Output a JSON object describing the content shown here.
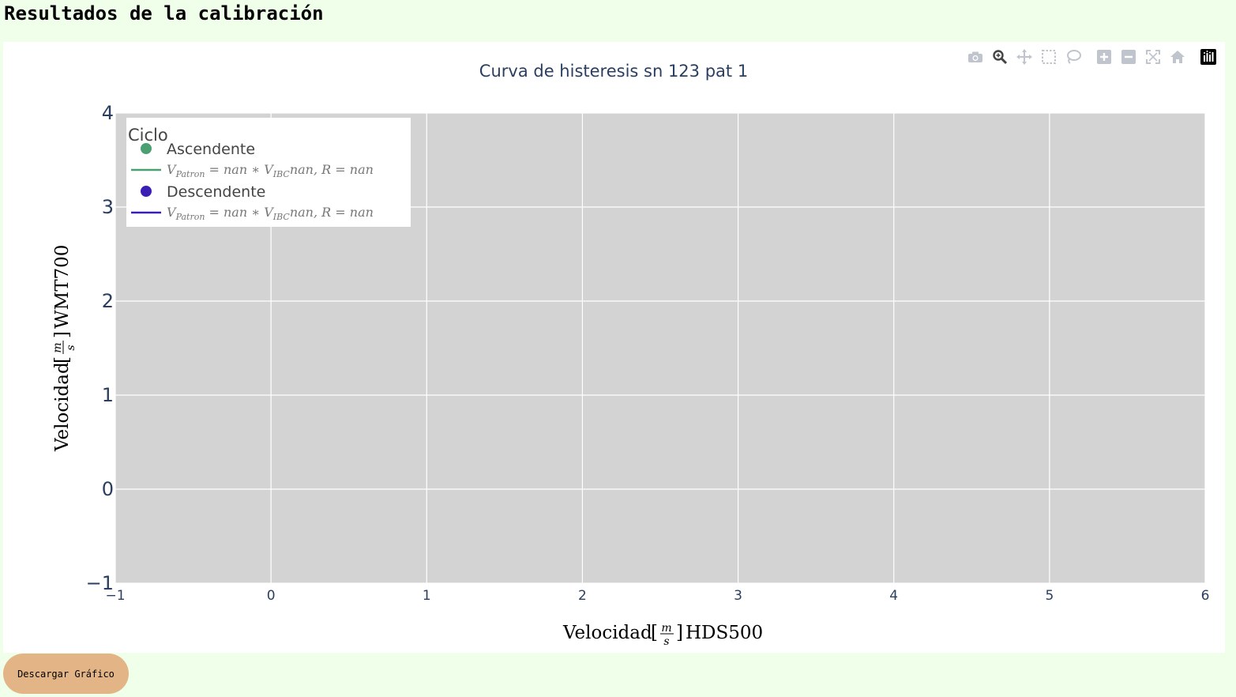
{
  "page": {
    "heading": "Resultados de la calibración",
    "download_label": "Descargar Gráfico"
  },
  "modebar": {
    "icons": [
      "camera-icon",
      "zoom-icon",
      "pan-icon",
      "box-select-icon",
      "lasso-icon",
      "zoom-in-icon",
      "zoom-out-icon",
      "autoscale-icon",
      "reset-axes-icon",
      "plotly-logo-icon"
    ]
  },
  "colors": {
    "page_bg": "#efffe9",
    "plot_bg": "#d3d3d3",
    "grid": "#ffffff",
    "ascendente": "#4c9f70",
    "descendente": "#3b1fb5",
    "button": "#e2b486"
  },
  "chart_data": {
    "type": "scatter",
    "title": "Curva de histeresis sn 123 pat 1",
    "xlabel_parts": {
      "main": "Velocidad",
      "frac_num": "m",
      "frac_den": "s",
      "suffix": "HDS500"
    },
    "ylabel_parts": {
      "main": "Velocidad",
      "frac_num": "m",
      "frac_den": "s",
      "suffix": "WMT700"
    },
    "xlim": [
      -1,
      6
    ],
    "ylim": [
      -1,
      4
    ],
    "xticks": [
      -1,
      0,
      1,
      2,
      3,
      4,
      5,
      6
    ],
    "yticks": [
      -1,
      0,
      1,
      2,
      3,
      4
    ],
    "xtick_labels": [
      "−1",
      "0",
      "1",
      "2",
      "3",
      "4",
      "5",
      "6"
    ],
    "ytick_labels": [
      "−1",
      "0",
      "1",
      "2",
      "3",
      "4"
    ],
    "grid": true,
    "legend": {
      "title": "Ciclo",
      "placement": "top-left",
      "entries": [
        {
          "name": "Ascendente",
          "kind": "marker",
          "color_key": "ascendente"
        },
        {
          "name": "V_Patron = nan * V_IBC nan, R = nan",
          "kind": "line",
          "color_key": "ascendente",
          "parts": {
            "v": "V",
            "sub1": "Patron",
            "mid": " = nan ∗ ",
            "v2": "V",
            "sub2": "IBC",
            "tail": "nan, R = nan"
          }
        },
        {
          "name": "Descendente",
          "kind": "marker",
          "color_key": "descendente"
        },
        {
          "name": "V_Patron = nan * V_IBC nan, R = nan",
          "kind": "line",
          "color_key": "descendente",
          "parts": {
            "v": "V",
            "sub1": "Patron",
            "mid": " = nan ∗ ",
            "v2": "V",
            "sub2": "IBC",
            "tail": "nan, R = nan"
          }
        }
      ]
    },
    "series": [
      {
        "name": "Ascendente",
        "mode": "markers",
        "x": [],
        "y": []
      },
      {
        "name": "Descendente",
        "mode": "markers",
        "x": [],
        "y": []
      }
    ]
  }
}
